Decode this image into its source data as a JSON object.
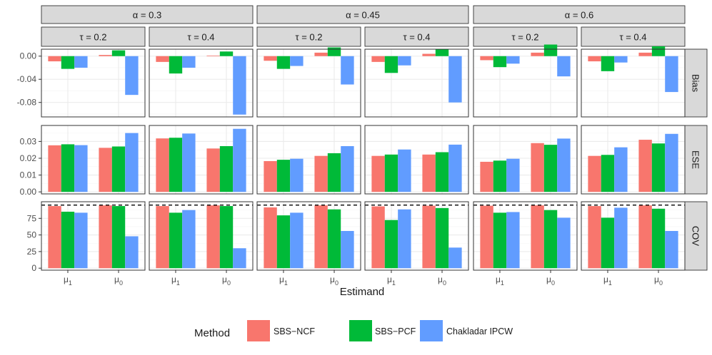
{
  "chart_data": {
    "type": "bar",
    "xlabel": "Estimand",
    "x_categories": [
      "μ1",
      "μ0"
    ],
    "alpha_labels": [
      "α = 0.3",
      "α = 0.45",
      "α = 0.6"
    ],
    "tau_labels": [
      "τ = 0.2",
      "τ = 0.4"
    ],
    "metrics": [
      {
        "key": "Bias",
        "label": "Bias",
        "ylim": [
          -0.105,
          0.012
        ],
        "ticks": [
          0.0,
          -0.04,
          -0.08
        ],
        "tick_labels": [
          "0.00",
          "-0.04",
          "-0.08"
        ],
        "minor_ticks": [
          -0.02,
          -0.06,
          -0.1
        ]
      },
      {
        "key": "ESE",
        "label": "ESE",
        "ylim": [
          -0.0012,
          0.0395
        ],
        "ticks": [
          0.0,
          0.01,
          0.02,
          0.03
        ],
        "tick_labels": [
          "0.00",
          "0.01",
          "0.02",
          "0.03"
        ],
        "minor_ticks": [
          0.005,
          0.015,
          0.025,
          0.035
        ]
      },
      {
        "key": "COV",
        "label": "COV",
        "ylim": [
          -3,
          100
        ],
        "ticks": [
          0,
          25,
          50,
          75
        ],
        "tick_labels": [
          "0",
          "25",
          "50",
          "75"
        ],
        "minor_ticks": [
          12.5,
          37.5,
          62.5,
          87.5
        ],
        "reference_line": 95
      }
    ],
    "series": [
      {
        "name": "SBS−NCF",
        "color": "#F8766D"
      },
      {
        "name": "SBS−PCF",
        "color": "#00BA38"
      },
      {
        "name": "Chakladar IPCW",
        "color": "#619CFF"
      }
    ],
    "panels": [
      {
        "alpha": "α = 0.3",
        "tau": "τ = 0.2",
        "Bias": {
          "μ1": [
            -0.009,
            -0.022,
            -0.02
          ],
          "μ0": [
            0.002,
            0.01,
            -0.067
          ]
        },
        "ESE": {
          "μ1": [
            0.0277,
            0.0283,
            0.0278
          ],
          "μ0": [
            0.0262,
            0.027,
            0.035
          ]
        },
        "COV": {
          "μ1": [
            93.5,
            85.0,
            83.5
          ],
          "μ0": [
            94.5,
            93.5,
            48.0
          ]
        }
      },
      {
        "alpha": "α = 0.3",
        "tau": "τ = 0.4",
        "Bias": {
          "μ1": [
            -0.01,
            -0.03,
            -0.02
          ],
          "μ0": [
            0.001,
            0.008,
            -0.101
          ]
        },
        "ESE": {
          "μ1": [
            0.0318,
            0.0322,
            0.0347
          ],
          "μ0": [
            0.0258,
            0.0272,
            0.0375
          ]
        },
        "COV": {
          "μ1": [
            93.5,
            83.5,
            87.5
          ],
          "μ0": [
            94.5,
            93.5,
            30.0
          ]
        }
      },
      {
        "alpha": "α = 0.45",
        "tau": "τ = 0.2",
        "Bias": {
          "μ1": [
            -0.008,
            -0.022,
            -0.017
          ],
          "μ0": [
            0.006,
            0.015,
            -0.049
          ]
        },
        "ESE": {
          "μ1": [
            0.0183,
            0.0191,
            0.0197
          ],
          "μ0": [
            0.0214,
            0.023,
            0.0272
          ]
        },
        "COV": {
          "μ1": [
            91.5,
            79.5,
            83.5
          ],
          "μ0": [
            94.5,
            88.5,
            56.0
          ]
        }
      },
      {
        "alpha": "α = 0.45",
        "tau": "τ = 0.4",
        "Bias": {
          "μ1": [
            -0.01,
            -0.029,
            -0.016
          ],
          "μ0": [
            0.004,
            0.012,
            -0.08
          ]
        },
        "ESE": {
          "μ1": [
            0.0214,
            0.0222,
            0.0252
          ],
          "μ0": [
            0.0222,
            0.0236,
            0.0281
          ]
        },
        "COV": {
          "μ1": [
            93.0,
            72.5,
            88.5
          ],
          "μ0": [
            94.0,
            90.5,
            31.0
          ]
        }
      },
      {
        "alpha": "α = 0.6",
        "tau": "τ = 0.2",
        "Bias": {
          "μ1": [
            -0.007,
            -0.019,
            -0.013
          ],
          "μ0": [
            0.006,
            0.02,
            -0.035
          ]
        },
        "ESE": {
          "μ1": [
            0.0179,
            0.0186,
            0.0197
          ],
          "μ0": [
            0.029,
            0.028,
            0.0317
          ]
        },
        "COV": {
          "μ1": [
            94.0,
            83.5,
            84.5
          ],
          "μ0": [
            94.5,
            87.5,
            76.0
          ]
        }
      },
      {
        "alpha": "α = 0.6",
        "tau": "τ = 0.4",
        "Bias": {
          "μ1": [
            -0.009,
            -0.026,
            -0.011
          ],
          "μ0": [
            0.006,
            0.017,
            -0.062
          ]
        },
        "ESE": {
          "μ1": [
            0.0214,
            0.022,
            0.0265
          ],
          "μ0": [
            0.031,
            0.0288,
            0.0345
          ]
        },
        "COV": {
          "μ1": [
            93.5,
            76.0,
            91.0
          ],
          "μ0": [
            94.5,
            89.5,
            56.0
          ]
        }
      }
    ],
    "legend": {
      "title": "Method",
      "position": "bottom"
    }
  }
}
